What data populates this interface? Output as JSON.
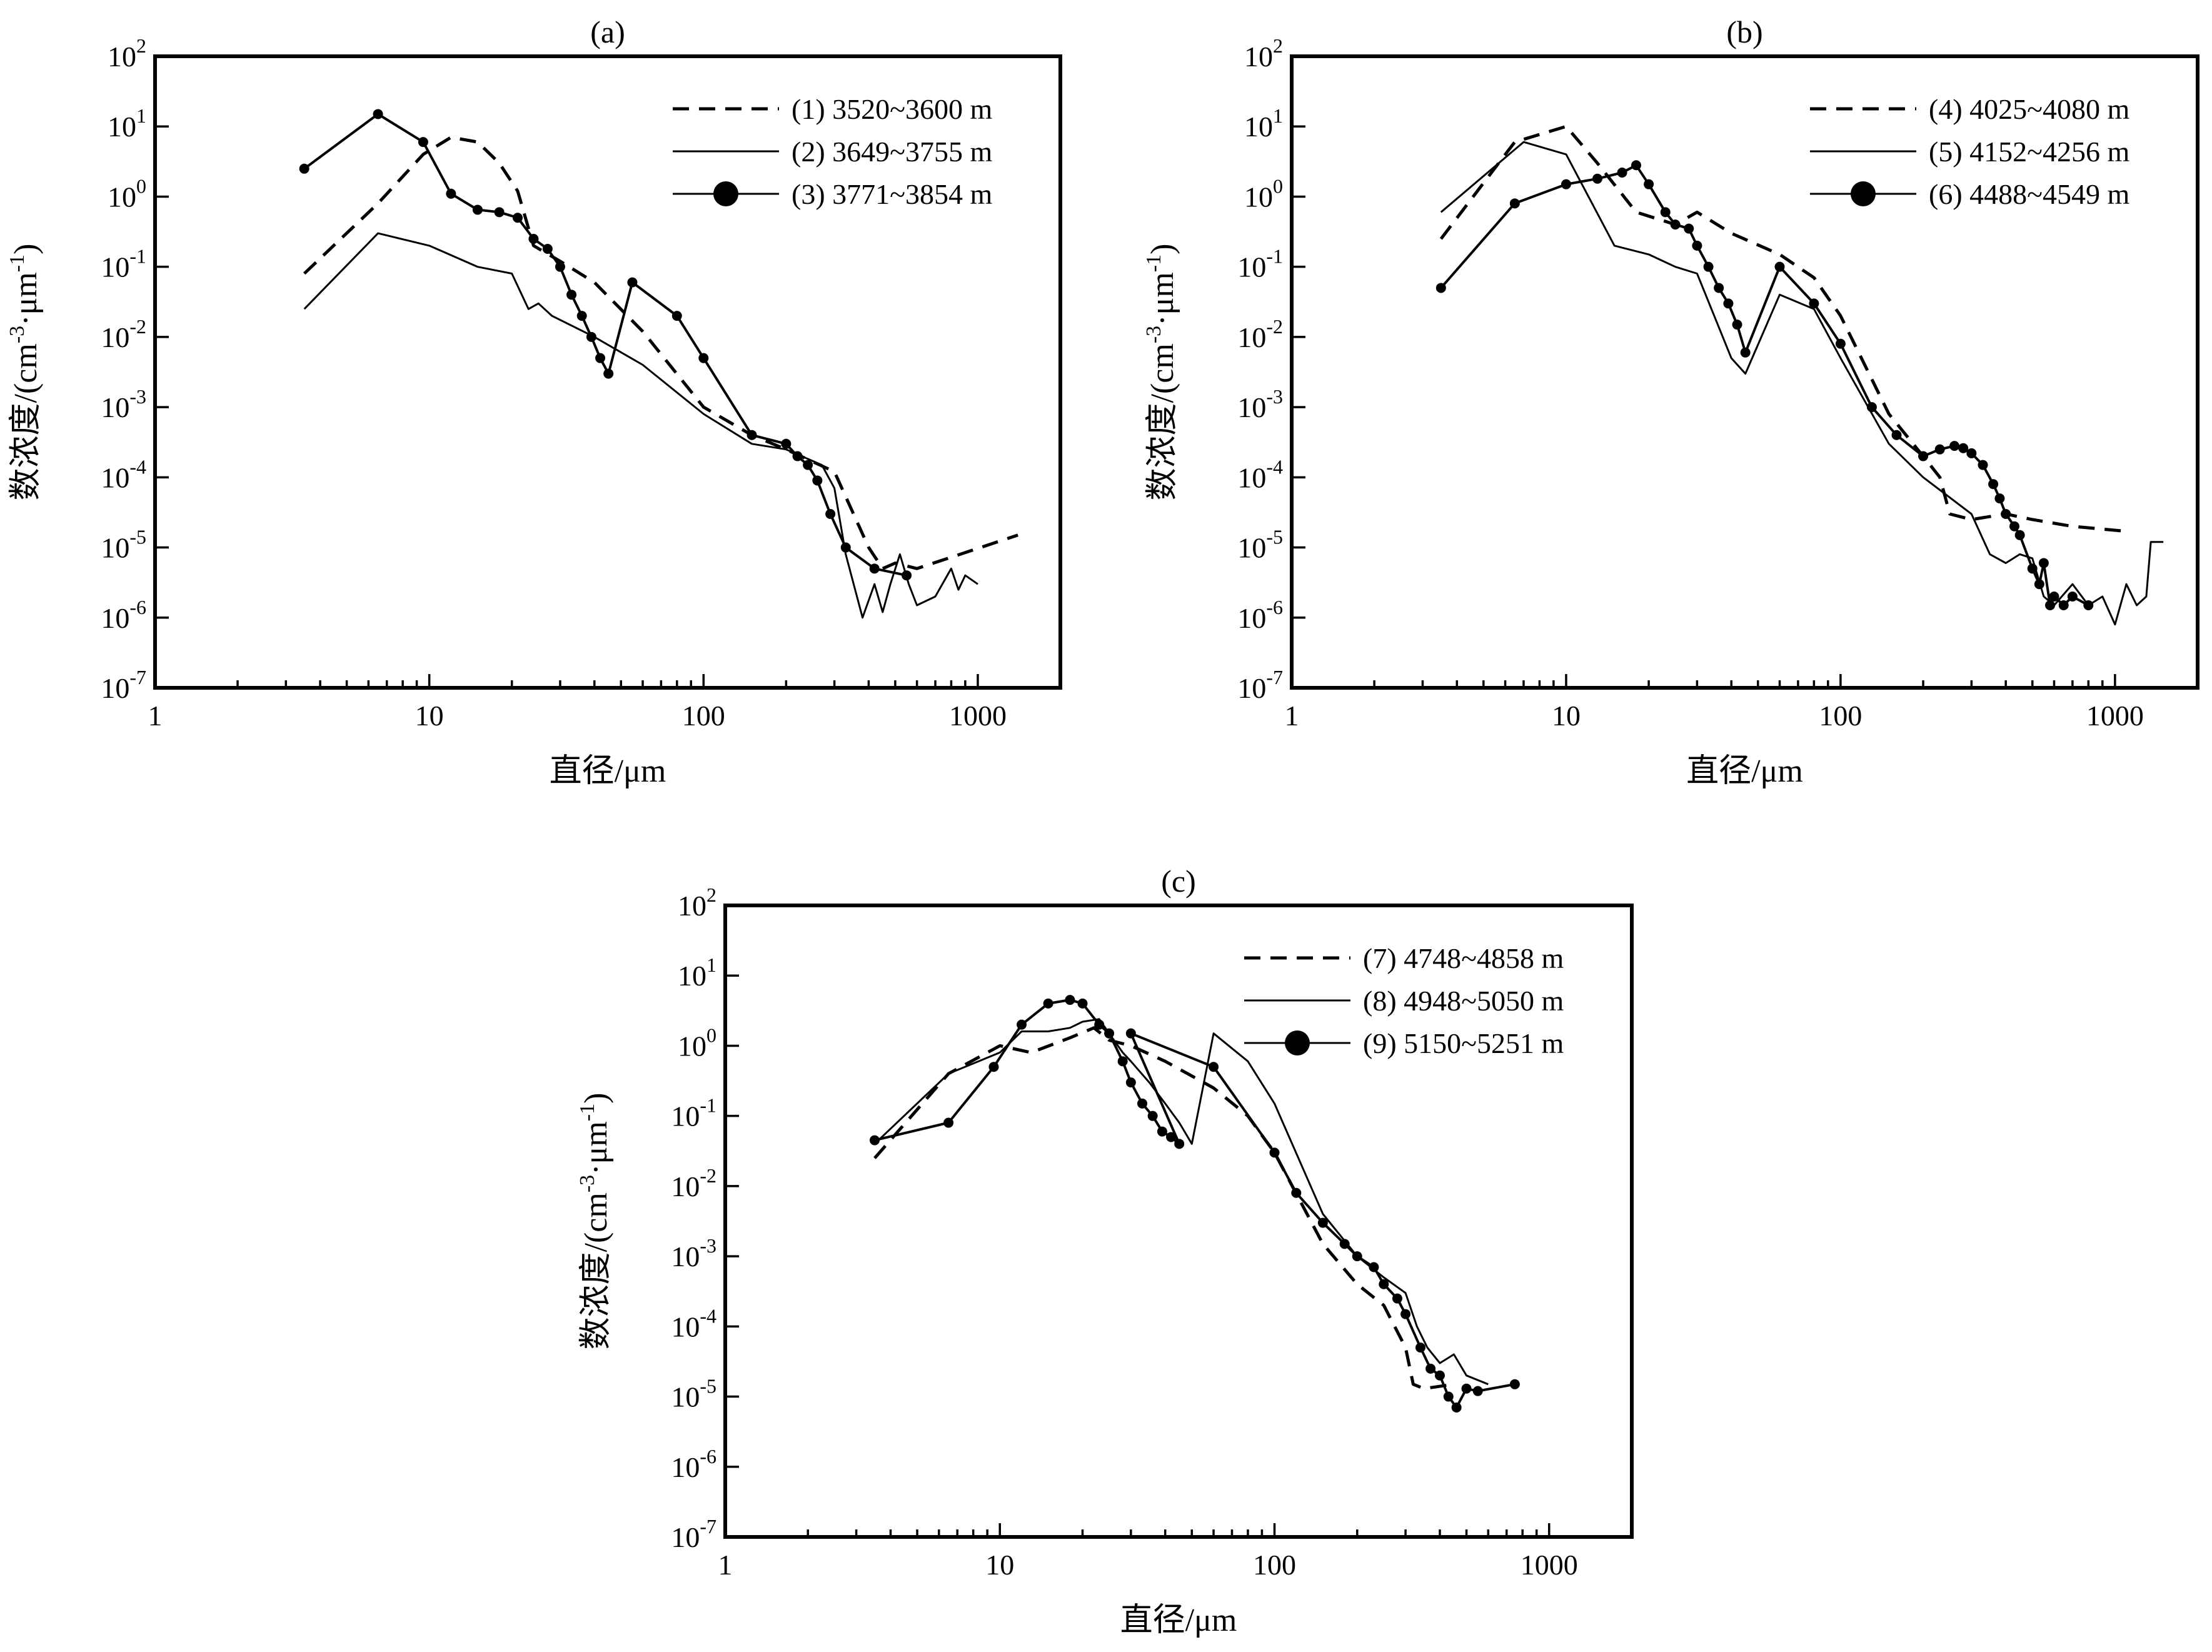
{
  "chart_data": [
    {
      "type": "line",
      "panel_label": "(a)",
      "xlabel": "直径/μm",
      "ylabel": "数浓度/(cm-3·μm-1)",
      "ylabel_parts": {
        "main": "数浓度/(cm",
        "sup1": "-3",
        "mid": "·μm",
        "sup2": "-1",
        "end": ")"
      },
      "x_scale": "log",
      "y_scale": "log",
      "xlim": [
        1,
        2000
      ],
      "ylim": [
        1e-07,
        100
      ],
      "x_ticks": [
        {
          "value": 1,
          "label": "1"
        },
        {
          "value": 10,
          "label": "10"
        },
        {
          "value": 100,
          "label": "100"
        },
        {
          "value": 1000,
          "label": "1000"
        }
      ],
      "y_ticks": [
        {
          "value": 1e-07,
          "base": "10",
          "exp": "-7"
        },
        {
          "value": 1e-06,
          "base": "10",
          "exp": "-6"
        },
        {
          "value": 1e-05,
          "base": "10",
          "exp": "-5"
        },
        {
          "value": 0.0001,
          "base": "10",
          "exp": "-4"
        },
        {
          "value": 0.001,
          "base": "10",
          "exp": "-3"
        },
        {
          "value": 0.01,
          "base": "10",
          "exp": "-2"
        },
        {
          "value": 0.1,
          "base": "10",
          "exp": "-1"
        },
        {
          "value": 1,
          "base": "10",
          "exp": "0"
        },
        {
          "value": 10,
          "base": "10",
          "exp": "1"
        },
        {
          "value": 100,
          "base": "10",
          "exp": "2"
        }
      ],
      "legend_position": "top-right",
      "grid": false,
      "series": [
        {
          "name": "(1) 3520~3600 m",
          "style": "dashed",
          "x": [
            3.5,
            6.5,
            9.5,
            12,
            15,
            18,
            21,
            24,
            30,
            40,
            60,
            100,
            150,
            200,
            300,
            400,
            450,
            500,
            600,
            1400
          ],
          "y": [
            0.08,
            0.8,
            4,
            7,
            6,
            3,
            1.2,
            0.2,
            0.12,
            0.06,
            0.012,
            0.001,
            0.0004,
            0.00025,
            0.00012,
            1e-05,
            5e-06,
            6e-06,
            5e-06,
            1.5e-05
          ]
        },
        {
          "name": "(2) 3649~3755 m",
          "style": "solid",
          "x": [
            3.5,
            6.5,
            10,
            15,
            20,
            23,
            25,
            28,
            40,
            60,
            100,
            150,
            200,
            270,
            300,
            330,
            380,
            420,
            450,
            480,
            520,
            560,
            600,
            700,
            800,
            850,
            900,
            1000
          ],
          "y": [
            0.025,
            0.3,
            0.2,
            0.1,
            0.08,
            0.025,
            0.03,
            0.02,
            0.01,
            0.004,
            0.0008,
            0.0003,
            0.00025,
            0.00015,
            7e-05,
            8e-06,
            1e-06,
            3e-06,
            1.2e-06,
            3e-06,
            8e-06,
            3e-06,
            1.5e-06,
            2e-06,
            5e-06,
            2.5e-06,
            4e-06,
            3e-06
          ]
        },
        {
          "name": "(3) 3771~3854 m",
          "style": "solid-dots",
          "x": [
            3.5,
            6.5,
            9.5,
            12,
            15,
            18,
            21,
            24,
            27,
            30,
            33,
            36,
            39,
            42,
            45,
            55,
            80,
            100,
            150,
            200,
            220,
            240,
            260,
            290,
            330,
            420,
            550
          ],
          "y": [
            2.5,
            15,
            6,
            1.1,
            0.65,
            0.6,
            0.5,
            0.25,
            0.18,
            0.1,
            0.04,
            0.02,
            0.01,
            0.005,
            0.003,
            0.06,
            0.02,
            0.005,
            0.0004,
            0.0003,
            0.0002,
            0.00015,
            9e-05,
            3e-05,
            1e-05,
            5e-06,
            4e-06
          ]
        }
      ],
      "legend": [
        {
          "label": "(1) 3520~3600 m",
          "style": "dashed"
        },
        {
          "label": "(2) 3649~3755 m",
          "style": "solid"
        },
        {
          "label": "(3) 3771~3854 m",
          "style": "solid-dots"
        }
      ]
    },
    {
      "type": "line",
      "panel_label": "(b)",
      "xlabel": "直径/μm",
      "ylabel": "数浓度/(cm-3·μm-1)",
      "ylabel_parts": {
        "main": "数浓度/(cm",
        "sup1": "-3",
        "mid": "·μm",
        "sup2": "-1",
        "end": ")"
      },
      "x_scale": "log",
      "y_scale": "log",
      "xlim": [
        1,
        2000
      ],
      "ylim": [
        1e-07,
        100
      ],
      "x_ticks": [
        {
          "value": 1,
          "label": "1"
        },
        {
          "value": 10,
          "label": "10"
        },
        {
          "value": 100,
          "label": "100"
        },
        {
          "value": 1000,
          "label": "1000"
        }
      ],
      "y_ticks": [
        {
          "value": 1e-07,
          "base": "10",
          "exp": "-7"
        },
        {
          "value": 1e-06,
          "base": "10",
          "exp": "-6"
        },
        {
          "value": 1e-05,
          "base": "10",
          "exp": "-5"
        },
        {
          "value": 0.0001,
          "base": "10",
          "exp": "-4"
        },
        {
          "value": 0.001,
          "base": "10",
          "exp": "-3"
        },
        {
          "value": 0.01,
          "base": "10",
          "exp": "-2"
        },
        {
          "value": 0.1,
          "base": "10",
          "exp": "-1"
        },
        {
          "value": 1,
          "base": "10",
          "exp": "0"
        },
        {
          "value": 10,
          "base": "10",
          "exp": "1"
        },
        {
          "value": 100,
          "base": "10",
          "exp": "2"
        }
      ],
      "legend_position": "top-right",
      "grid": false,
      "series": [
        {
          "name": "(4) 4025~4080 m",
          "style": "dashed",
          "x": [
            3.5,
            6.5,
            10,
            13,
            18,
            25,
            30,
            40,
            60,
            80,
            100,
            150,
            200,
            230,
            250,
            300,
            400,
            500,
            700,
            1100
          ],
          "y": [
            0.25,
            6,
            10,
            3,
            0.6,
            0.4,
            0.6,
            0.3,
            0.15,
            0.07,
            0.02,
            0.0008,
            0.0002,
            0.0001,
            3e-05,
            2.5e-05,
            3e-05,
            2.5e-05,
            2e-05,
            1.7e-05
          ]
        },
        {
          "name": "(5) 4152~4256 m",
          "style": "solid",
          "x": [
            3.5,
            7,
            10,
            15,
            20,
            25,
            30,
            40,
            45,
            60,
            80,
            100,
            150,
            200,
            300,
            350,
            400,
            450,
            500,
            550,
            600,
            700,
            800,
            900,
            1000,
            1100,
            1200,
            1300,
            1350,
            1500
          ],
          "y": [
            0.6,
            6,
            4,
            0.2,
            0.15,
            0.1,
            0.08,
            0.005,
            0.003,
            0.04,
            0.025,
            0.005,
            0.0003,
            0.0001,
            3e-05,
            8e-06,
            6e-06,
            8e-06,
            7e-06,
            2e-06,
            1.5e-06,
            3e-06,
            1.5e-06,
            2e-06,
            8e-07,
            3e-06,
            1.5e-06,
            2e-06,
            1.2e-05,
            1.2e-05
          ]
        },
        {
          "name": "(6) 4488~4549 m",
          "style": "solid-dots",
          "x": [
            3.5,
            6.5,
            10,
            13,
            16,
            18,
            20,
            23,
            25,
            28,
            30,
            33,
            36,
            39,
            42,
            45,
            60,
            80,
            100,
            130,
            160,
            200,
            230,
            260,
            280,
            300,
            330,
            360,
            380,
            400,
            430,
            450,
            500,
            530,
            550,
            580,
            600,
            650,
            700,
            800
          ],
          "y": [
            0.05,
            0.8,
            1.5,
            1.8,
            2.2,
            2.8,
            1.5,
            0.6,
            0.4,
            0.35,
            0.2,
            0.1,
            0.05,
            0.03,
            0.015,
            0.006,
            0.1,
            0.03,
            0.008,
            0.001,
            0.0004,
            0.0002,
            0.00025,
            0.00028,
            0.00026,
            0.00022,
            0.00015,
            8e-05,
            5e-05,
            3e-05,
            2e-05,
            1.5e-05,
            5e-06,
            3e-06,
            6e-06,
            1.5e-06,
            2e-06,
            1.5e-06,
            2e-06,
            1.5e-06
          ]
        }
      ],
      "legend": [
        {
          "label": "(4) 4025~4080 m",
          "style": "dashed"
        },
        {
          "label": "(5) 4152~4256 m",
          "style": "solid"
        },
        {
          "label": "(6) 4488~4549 m",
          "style": "solid-dots"
        }
      ]
    },
    {
      "type": "line",
      "panel_label": "(c)",
      "xlabel": "直径/μm",
      "ylabel": "数浓度/(cm-3·μm-1)",
      "ylabel_parts": {
        "main": "数浓度/(cm",
        "sup1": "-3",
        "mid": "·μm",
        "sup2": "-1",
        "end": ")"
      },
      "x_scale": "log",
      "y_scale": "log",
      "xlim": [
        1,
        2000
      ],
      "ylim": [
        1e-07,
        100
      ],
      "x_ticks": [
        {
          "value": 1,
          "label": "1"
        },
        {
          "value": 10,
          "label": "10"
        },
        {
          "value": 100,
          "label": "100"
        },
        {
          "value": 1000,
          "label": "1000"
        }
      ],
      "y_ticks": [
        {
          "value": 1e-07,
          "base": "10",
          "exp": "-7"
        },
        {
          "value": 1e-06,
          "base": "10",
          "exp": "-6"
        },
        {
          "value": 1e-05,
          "base": "10",
          "exp": "-5"
        },
        {
          "value": 0.0001,
          "base": "10",
          "exp": "-4"
        },
        {
          "value": 0.001,
          "base": "10",
          "exp": "-3"
        },
        {
          "value": 0.01,
          "base": "10",
          "exp": "-2"
        },
        {
          "value": 0.1,
          "base": "10",
          "exp": "-1"
        },
        {
          "value": 1,
          "base": "10",
          "exp": "0"
        },
        {
          "value": 10,
          "base": "10",
          "exp": "1"
        },
        {
          "value": 100,
          "base": "10",
          "exp": "2"
        }
      ],
      "legend_position": "top-right",
      "grid": false,
      "series": [
        {
          "name": "(7) 4748~4858 m",
          "style": "dashed",
          "x": [
            3.5,
            6.5,
            10,
            13,
            18,
            22,
            25,
            30,
            40,
            60,
            80,
            100,
            150,
            200,
            250,
            300,
            320,
            350,
            450
          ],
          "y": [
            0.025,
            0.4,
            1,
            0.8,
            1.3,
            1.8,
            1.2,
            1,
            0.6,
            0.25,
            0.1,
            0.03,
            0.0015,
            0.0004,
            0.0002,
            5e-05,
            1.5e-05,
            1.3e-05,
            1.5e-05
          ]
        },
        {
          "name": "(8) 4948~5050 m",
          "style": "solid",
          "x": [
            3.5,
            6.5,
            10,
            12,
            15,
            18,
            20,
            23,
            25,
            28,
            30,
            35,
            40,
            45,
            50,
            60,
            80,
            100,
            150,
            200,
            250,
            300,
            330,
            360,
            400,
            450,
            500,
            600
          ],
          "y": [
            0.04,
            0.4,
            0.8,
            1.6,
            1.6,
            1.8,
            2.2,
            2.4,
            1.5,
            0.8,
            0.6,
            0.3,
            0.15,
            0.08,
            0.04,
            1.5,
            0.6,
            0.15,
            0.004,
            0.001,
            0.0005,
            0.0003,
            0.0001,
            5e-05,
            3e-05,
            4e-05,
            2e-05,
            1.5e-05
          ]
        },
        {
          "name": "(9) 5150~5251 m",
          "style": "solid-dots",
          "x": [
            3.5,
            6.5,
            9.5,
            12,
            15,
            18,
            20,
            23,
            25,
            28,
            30,
            33,
            36,
            39,
            42,
            45,
            30,
            60,
            100,
            120,
            150,
            180,
            200,
            230,
            250,
            280,
            300,
            340,
            370,
            400,
            430,
            460,
            500,
            550,
            750
          ],
          "y": [
            0.045,
            0.08,
            0.5,
            2,
            4,
            4.5,
            4,
            2,
            1.5,
            0.6,
            0.3,
            0.15,
            0.1,
            0.06,
            0.05,
            0.04,
            1.5,
            0.5,
            0.03,
            0.008,
            0.003,
            0.0015,
            0.001,
            0.0007,
            0.0004,
            0.00025,
            0.00015,
            5e-05,
            2.5e-05,
            2e-05,
            1e-05,
            7e-06,
            1.3e-05,
            1.2e-05,
            1.5e-05
          ]
        }
      ],
      "legend": [
        {
          "label": "(7) 4748~4858 m",
          "style": "dashed"
        },
        {
          "label": "(8) 4948~5050 m",
          "style": "solid"
        },
        {
          "label": "(9) 5150~5251 m",
          "style": "solid-dots"
        }
      ]
    }
  ]
}
